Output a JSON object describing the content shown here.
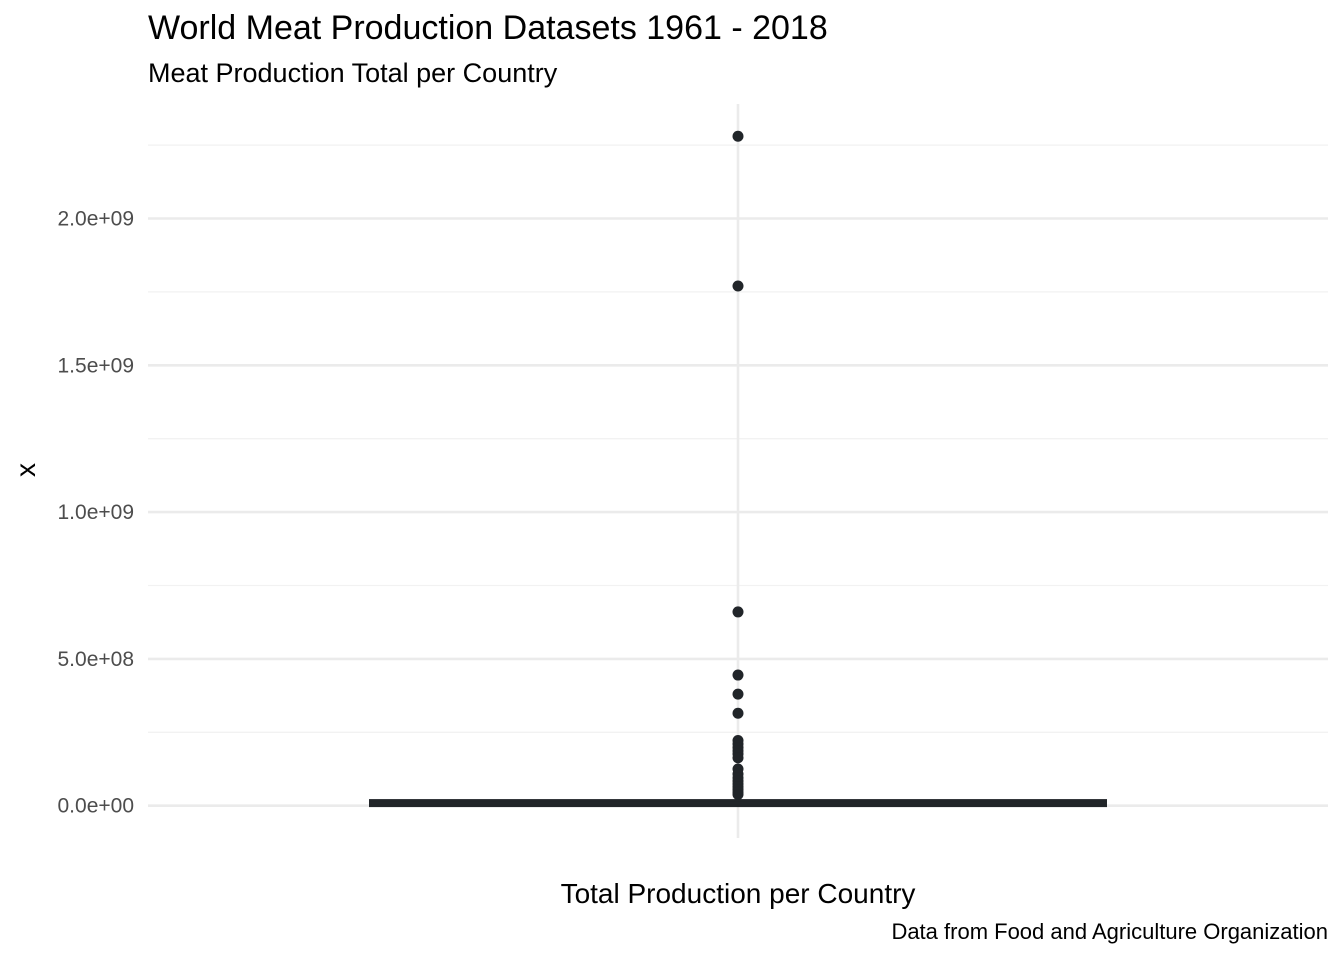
{
  "chart_data": {
    "type": "boxplot",
    "title": "World Meat Production Datasets 1961 - 2018",
    "subtitle": "Meat Production Total per Country",
    "caption": "Data from Food and Agriculture Organization",
    "xlabel": "Total Production per Country",
    "ylabel": "x",
    "ylim": [
      -110000000,
      2390000000
    ],
    "y_ticks": [
      0,
      500000000,
      1000000000,
      1500000000,
      2000000000
    ],
    "y_tick_labels": [
      "0.0e+00",
      "5.0e+08",
      "1.0e+09",
      "1.5e+09",
      "2.0e+09"
    ],
    "grid": true,
    "box": {
      "min": 0,
      "q1": 2000000,
      "median": 8000000,
      "q3": 14000000,
      "max": 32000000
    },
    "outliers": [
      2280000000,
      1770000000,
      660000000,
      445000000,
      380000000,
      315000000,
      222000000,
      210000000,
      198000000,
      187000000,
      176000000,
      163000000,
      125000000,
      108000000,
      95000000,
      84000000,
      74000000,
      64000000,
      55000000,
      46000000,
      38000000
    ],
    "colors": {
      "box": "#212529",
      "points": "#212529",
      "grid_major": "#ebebeb",
      "grid_minor": "#f2f2f2",
      "tick_text": "#4d4d4d"
    }
  }
}
